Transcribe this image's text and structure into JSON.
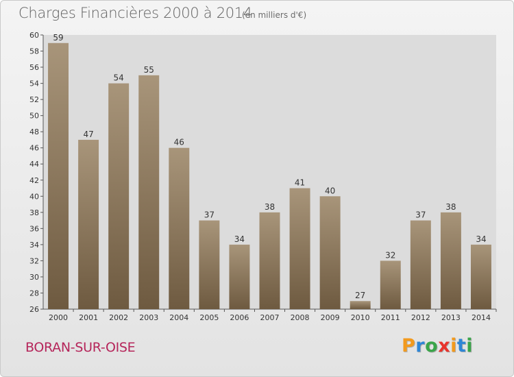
{
  "header": {
    "title": "Charges Financières 2000 à 2014",
    "subtitle": "(en milliers d'€)"
  },
  "footer": {
    "commune": "BORAN-SUR-OISE",
    "logo": {
      "letters": [
        "P",
        "r",
        "o",
        "x",
        "i",
        "t",
        "i"
      ],
      "colors": [
        "#f29a1e",
        "#2e86d6",
        "#3aa54a",
        "#e8342c",
        "#f29a1e",
        "#2e86d6",
        "#3aa54a"
      ]
    }
  },
  "chart_data": {
    "type": "bar",
    "title": "Charges Financières 2000 à 2014",
    "subtitle": "(en milliers d'€)",
    "xlabel": "",
    "ylabel": "",
    "categories": [
      "2000",
      "2001",
      "2002",
      "2003",
      "2004",
      "2005",
      "2006",
      "2007",
      "2008",
      "2009",
      "2010",
      "2011",
      "2012",
      "2013",
      "2014"
    ],
    "values": [
      59,
      47,
      54,
      55,
      46,
      37,
      34,
      38,
      41,
      40,
      27,
      32,
      37,
      38,
      34
    ],
    "ylim": [
      26,
      60
    ],
    "yticks": [
      26,
      28,
      30,
      32,
      34,
      36,
      38,
      40,
      42,
      44,
      46,
      48,
      50,
      52,
      54,
      56,
      58,
      60
    ],
    "grid": false,
    "legend": "none",
    "colors": {
      "bar_top": "#a8957a",
      "bar_bottom": "#6e5a40",
      "plot_background": "#dcdcdc"
    }
  }
}
